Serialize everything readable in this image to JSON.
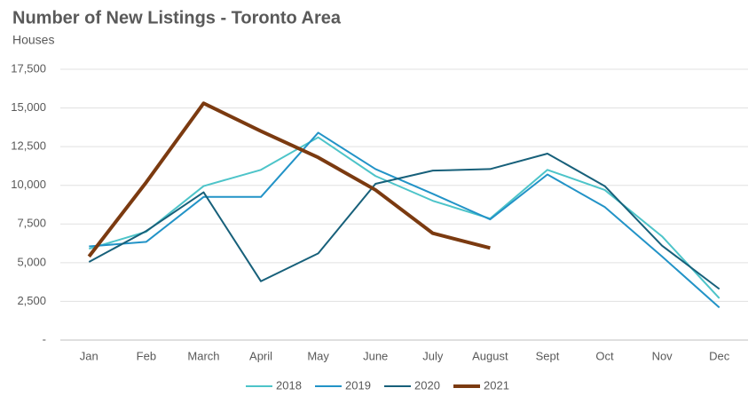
{
  "chart_data": {
    "type": "line",
    "title": "Number of New Listings - Toronto Area",
    "subtitle": "Houses",
    "categories": [
      "Jan",
      "Feb",
      "March",
      "April",
      "May",
      "June",
      "July",
      "August",
      "Sept",
      "Oct",
      "Nov",
      "Dec"
    ],
    "series": [
      {
        "name": "2018",
        "color": "#4dc4c9",
        "values": [
          5900,
          7000,
          9950,
          11000,
          13100,
          10600,
          9000,
          7850,
          11000,
          9700,
          6700,
          2700
        ]
      },
      {
        "name": "2019",
        "color": "#2293c7",
        "values": [
          6050,
          6350,
          9250,
          9250,
          13400,
          11050,
          9450,
          7800,
          10700,
          8600,
          5400,
          2100
        ]
      },
      {
        "name": "2020",
        "color": "#17607a",
        "values": [
          5050,
          7050,
          9550,
          3800,
          5600,
          10100,
          10950,
          11050,
          12050,
          9950,
          6100,
          3300
        ]
      },
      {
        "name": "2021",
        "color": "#7b3a10",
        "values": [
          5400,
          10200,
          15300,
          13500,
          11800,
          9700,
          6900,
          5950,
          null,
          null,
          null,
          null
        ]
      }
    ],
    "ylim": [
      0,
      17500
    ],
    "yticks": [
      {
        "value": 0,
        "label": "-"
      },
      {
        "value": 2500,
        "label": "2,500"
      },
      {
        "value": 5000,
        "label": "5,000"
      },
      {
        "value": 7500,
        "label": "7,500"
      },
      {
        "value": 10000,
        "label": "10,000"
      },
      {
        "value": 12500,
        "label": "12,500"
      },
      {
        "value": 15000,
        "label": "15,000"
      },
      {
        "value": 17500,
        "label": "17,500"
      }
    ],
    "grid": true,
    "legend": "bottom"
  }
}
